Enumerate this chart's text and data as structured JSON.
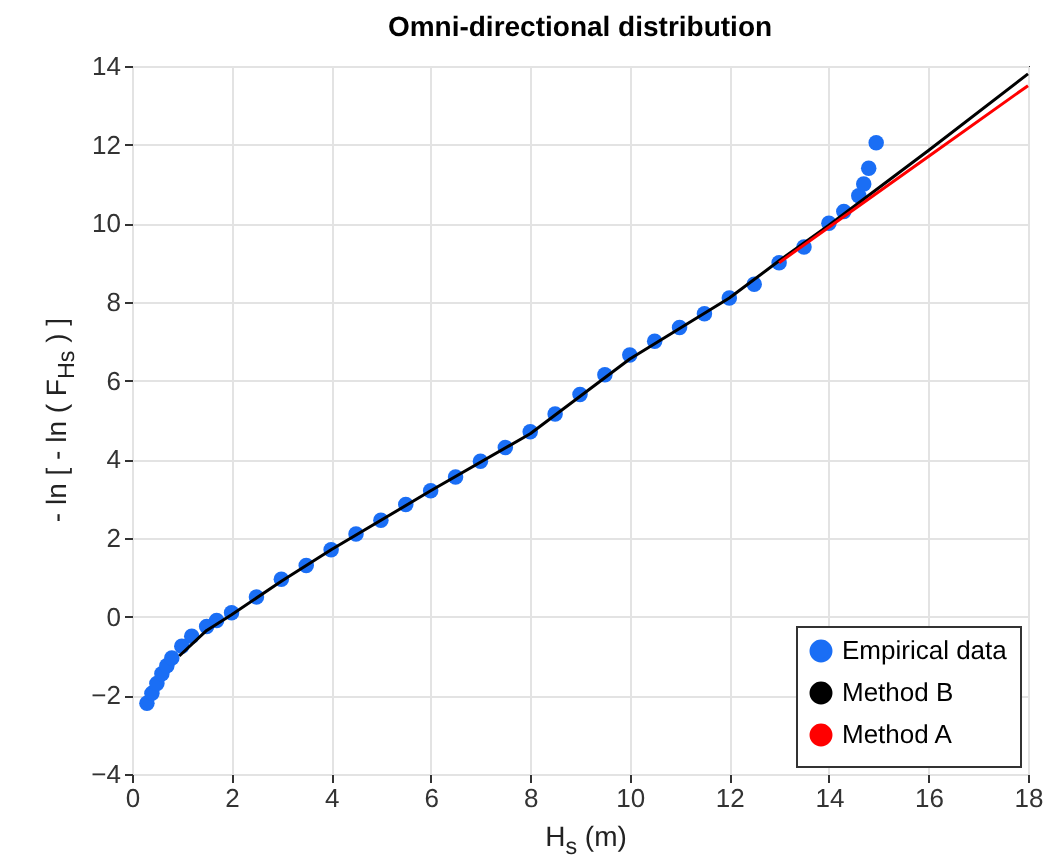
{
  "chart_data": {
    "type": "scatter",
    "title": "Omni-directional distribution",
    "xlabel": "H$_{s}$ (m)",
    "ylabel": "- ln [ - ln ( F$_{Hs}$ ) ]",
    "xlim": [
      0,
      18
    ],
    "xticks": [
      0,
      2,
      4,
      6,
      8,
      10,
      12,
      14,
      16,
      18
    ],
    "ylim": [
      -4,
      14
    ],
    "yticks": [
      -4,
      -2,
      0,
      2,
      4,
      6,
      8,
      10,
      12,
      14
    ],
    "grid": true,
    "legend": "bottom right",
    "series": [
      {
        "name": "Empirical data",
        "marker": "circle",
        "color": "#1a6ef5",
        "x": [
          0.3,
          0.4,
          0.5,
          0.6,
          0.7,
          0.8,
          1.0,
          1.2,
          1.5,
          1.7,
          2.0,
          2.5,
          3.0,
          3.5,
          4.0,
          4.5,
          5.0,
          5.5,
          6.0,
          6.5,
          7.0,
          7.5,
          8.0,
          8.5,
          9.0,
          9.5,
          10.0,
          10.5,
          11.0,
          11.5,
          12.0,
          12.5,
          13.0,
          13.5,
          14.0,
          14.3,
          14.6,
          14.7,
          14.8,
          14.95
        ],
        "values": [
          -2.2,
          -1.95,
          -1.7,
          -1.45,
          -1.25,
          -1.05,
          -0.75,
          -0.5,
          -0.25,
          -0.1,
          0.1,
          0.5,
          0.95,
          1.3,
          1.7,
          2.1,
          2.45,
          2.85,
          3.2,
          3.55,
          3.95,
          4.3,
          4.7,
          5.15,
          5.65,
          6.15,
          6.65,
          7.0,
          7.35,
          7.7,
          8.1,
          8.45,
          9.0,
          9.4,
          10.0,
          10.3,
          10.7,
          11.0,
          11.4,
          12.05
        ]
      },
      {
        "name": "Method B",
        "type": "line",
        "color": "#000000",
        "x": [
          0.95,
          1.5,
          2,
          3,
          4,
          6,
          8,
          10,
          12,
          13,
          14,
          16,
          18
        ],
        "values": [
          -1.0,
          -0.35,
          0.05,
          0.9,
          1.7,
          3.2,
          4.65,
          6.55,
          8.1,
          9.05,
          9.95,
          11.85,
          13.8
        ]
      },
      {
        "name": "Method A",
        "type": "line",
        "color": "#ff0000",
        "x": [
          13,
          14,
          16,
          18
        ],
        "values": [
          9.0,
          9.9,
          11.7,
          13.5
        ]
      }
    ]
  }
}
